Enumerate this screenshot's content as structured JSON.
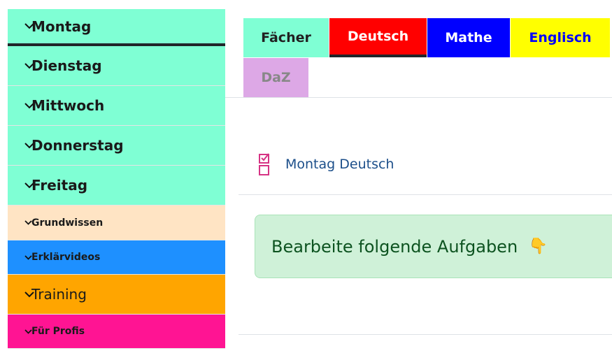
{
  "sidebar": {
    "items": [
      {
        "label": "Montag",
        "color": "#7fffd4"
      },
      {
        "label": "Dienstag",
        "color": "#7fffd4"
      },
      {
        "label": "Mittwoch",
        "color": "#7fffd4"
      },
      {
        "label": "Donnerstag",
        "color": "#7fffd4"
      },
      {
        "label": "Freitag",
        "color": "#7fffd4"
      },
      {
        "label": "Grundwissen",
        "color": "#ffe4c4"
      },
      {
        "label": "Erklärvideos",
        "color": "#1e90ff"
      },
      {
        "label": "Training",
        "color": "#ffa500"
      },
      {
        "label": "Für Profis",
        "color": "#ff1493"
      }
    ]
  },
  "tabs": [
    {
      "label": "Fächer",
      "bg": "#7fffd4",
      "fg": "#212121"
    },
    {
      "label": "Deutsch",
      "bg": "#ff0000",
      "fg": "#ffffff",
      "active": true
    },
    {
      "label": "Mathe",
      "bg": "#0000ff",
      "fg": "#ffffff"
    },
    {
      "label": "Englisch",
      "bg": "#ffff00",
      "fg": "#0000ff"
    },
    {
      "label": "DaZ",
      "bg": "#dda8e6",
      "fg": "#888888"
    }
  ],
  "activity": {
    "label": "Montag Deutsch",
    "icon": "checklist-icon"
  },
  "alert": {
    "text": "Bearbeite folgende Aufgaben",
    "emoji": "👇"
  }
}
